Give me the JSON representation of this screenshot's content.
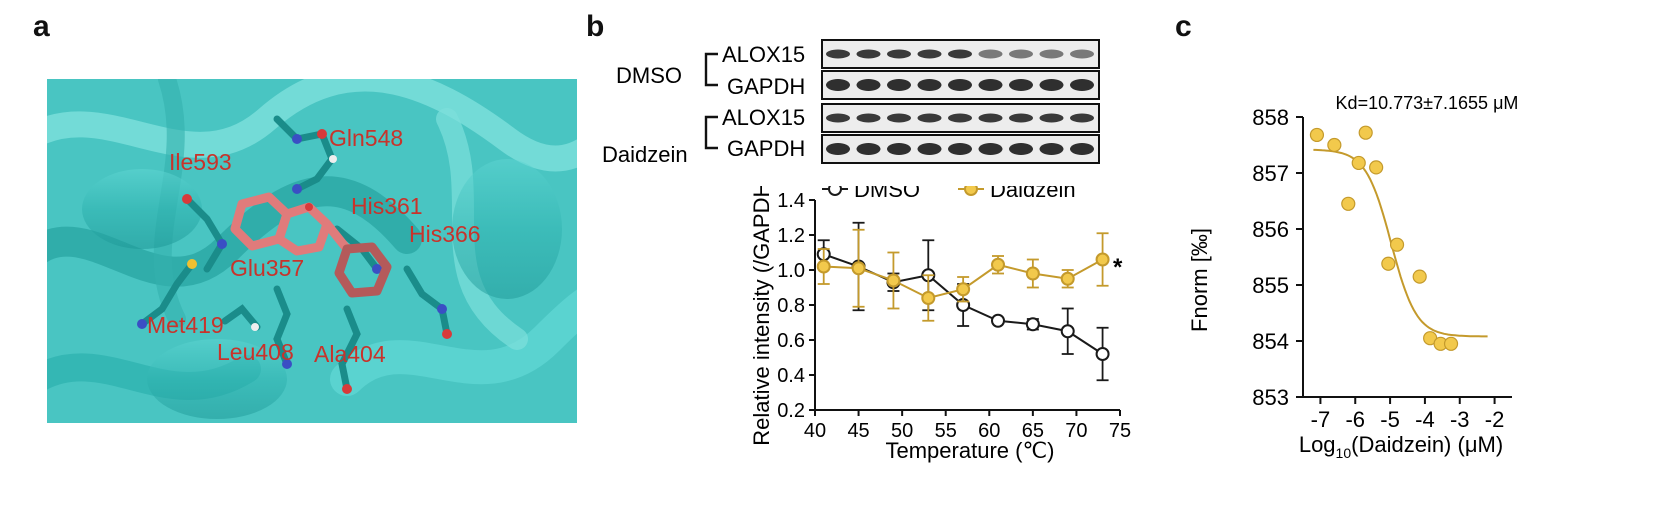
{
  "panels": {
    "a": {
      "letter": "a"
    },
    "b": {
      "letter": "b"
    },
    "c": {
      "letter": "c"
    }
  },
  "docking": {
    "residues": [
      "Gln548",
      "Ile593",
      "His361",
      "His366",
      "Glu357",
      "Met419",
      "Leu408",
      "Ala404"
    ],
    "colors": {
      "protein": "#3ebfbf",
      "ligand": "#e07b7b",
      "label": "#c8332b"
    }
  },
  "blot": {
    "groups": [
      {
        "name": "DMSO",
        "bands": [
          "ALOX15",
          "GAPDH"
        ]
      },
      {
        "name": "Daidzein",
        "bands": [
          "ALOX15",
          "GAPDH"
        ]
      }
    ],
    "lanes": 9
  },
  "chart_data": [
    {
      "type": "line",
      "panel": "b",
      "xlabel": "Temperature (℃)",
      "ylabel": "Relative intensity (/GAPDH)",
      "xlim": [
        40,
        75
      ],
      "ylim": [
        0.2,
        1.4
      ],
      "xticks": [
        40,
        45,
        50,
        55,
        60,
        65,
        70,
        75
      ],
      "yticks": [
        0.2,
        0.4,
        0.6,
        0.8,
        1.0,
        1.2,
        1.4
      ],
      "x": [
        41,
        45,
        49,
        53,
        57,
        61,
        65,
        69,
        73
      ],
      "series": [
        {
          "name": "DMSO",
          "color": "#1a1a1a",
          "values": [
            1.09,
            1.02,
            0.93,
            0.97,
            0.8,
            0.71,
            0.69,
            0.65,
            0.52
          ],
          "errors": [
            0.08,
            0.25,
            0.05,
            0.2,
            0.12,
            0.01,
            0.03,
            0.13,
            0.15
          ]
        },
        {
          "name": "Daidzein",
          "color": "#c49a2c",
          "values": [
            1.02,
            1.01,
            0.94,
            0.84,
            0.89,
            1.03,
            0.98,
            0.95,
            1.06
          ],
          "errors": [
            0.1,
            0.22,
            0.16,
            0.13,
            0.07,
            0.05,
            0.08,
            0.05,
            0.15
          ]
        }
      ],
      "annotation": "*",
      "legend": "top"
    },
    {
      "type": "scatter",
      "panel": "c",
      "title": "Kd=10.773±7.1655 μM",
      "xlabel_prefix": "Log",
      "xlabel_sub": "10",
      "xlabel_suffix": "(Daidzein) (μM)",
      "ylabel": "Fnorm [‰]",
      "xlim": [
        -7.5,
        -1.5
      ],
      "ylim": [
        853,
        858
      ],
      "xticks": [
        -7,
        -6,
        -5,
        -4,
        -3,
        -2
      ],
      "yticks": [
        853,
        854,
        855,
        856,
        857,
        858
      ],
      "points": [
        {
          "x": -7.1,
          "y": 857.68
        },
        {
          "x": -6.6,
          "y": 857.5
        },
        {
          "x": -6.2,
          "y": 856.45
        },
        {
          "x": -5.9,
          "y": 857.18
        },
        {
          "x": -5.7,
          "y": 857.72
        },
        {
          "x": -5.4,
          "y": 857.1
        },
        {
          "x": -5.05,
          "y": 855.38
        },
        {
          "x": -4.8,
          "y": 855.72
        },
        {
          "x": -4.15,
          "y": 855.15
        },
        {
          "x": -3.85,
          "y": 854.05
        },
        {
          "x": -3.55,
          "y": 853.95
        },
        {
          "x": -3.25,
          "y": 853.95
        }
      ],
      "fit": {
        "top": 857.42,
        "bottom": 854.08,
        "log_ec50": -4.97,
        "hill": 1.2,
        "xrange": [
          -7.2,
          -2.2
        ]
      },
      "color": "#c49a2c",
      "fill": "#f2c94c"
    }
  ]
}
